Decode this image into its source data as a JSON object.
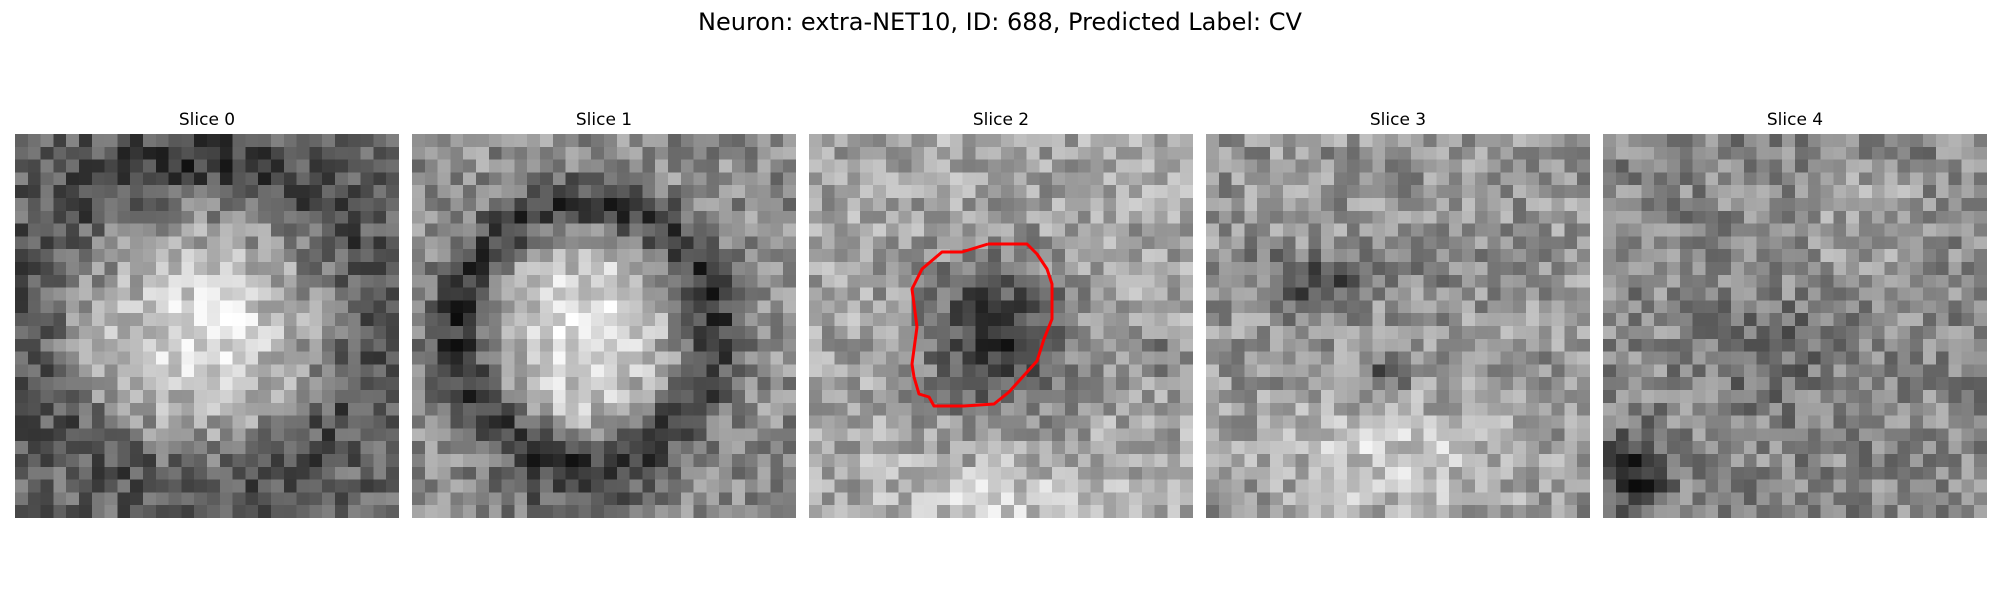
{
  "figure": {
    "title": "Neuron: extra-NET10, ID: 688, Predicted Label: CV"
  },
  "panels": [
    {
      "title": "Slice 0",
      "image": "grayscale-microscopy-slice",
      "pattern": "bright-soma"
    },
    {
      "title": "Slice 1",
      "image": "grayscale-microscopy-slice",
      "pattern": "bright-soma-dark-ring"
    },
    {
      "title": "Slice 2",
      "image": "grayscale-microscopy-slice",
      "pattern": "dark-core",
      "contour": {
        "color": "#ff0000",
        "label": "roi-contour"
      }
    },
    {
      "title": "Slice 3",
      "image": "grayscale-microscopy-slice",
      "pattern": "mottled-bright-bottom"
    },
    {
      "title": "Slice 4",
      "image": "grayscale-microscopy-slice",
      "pattern": "mottled-dark-corner"
    }
  ]
}
